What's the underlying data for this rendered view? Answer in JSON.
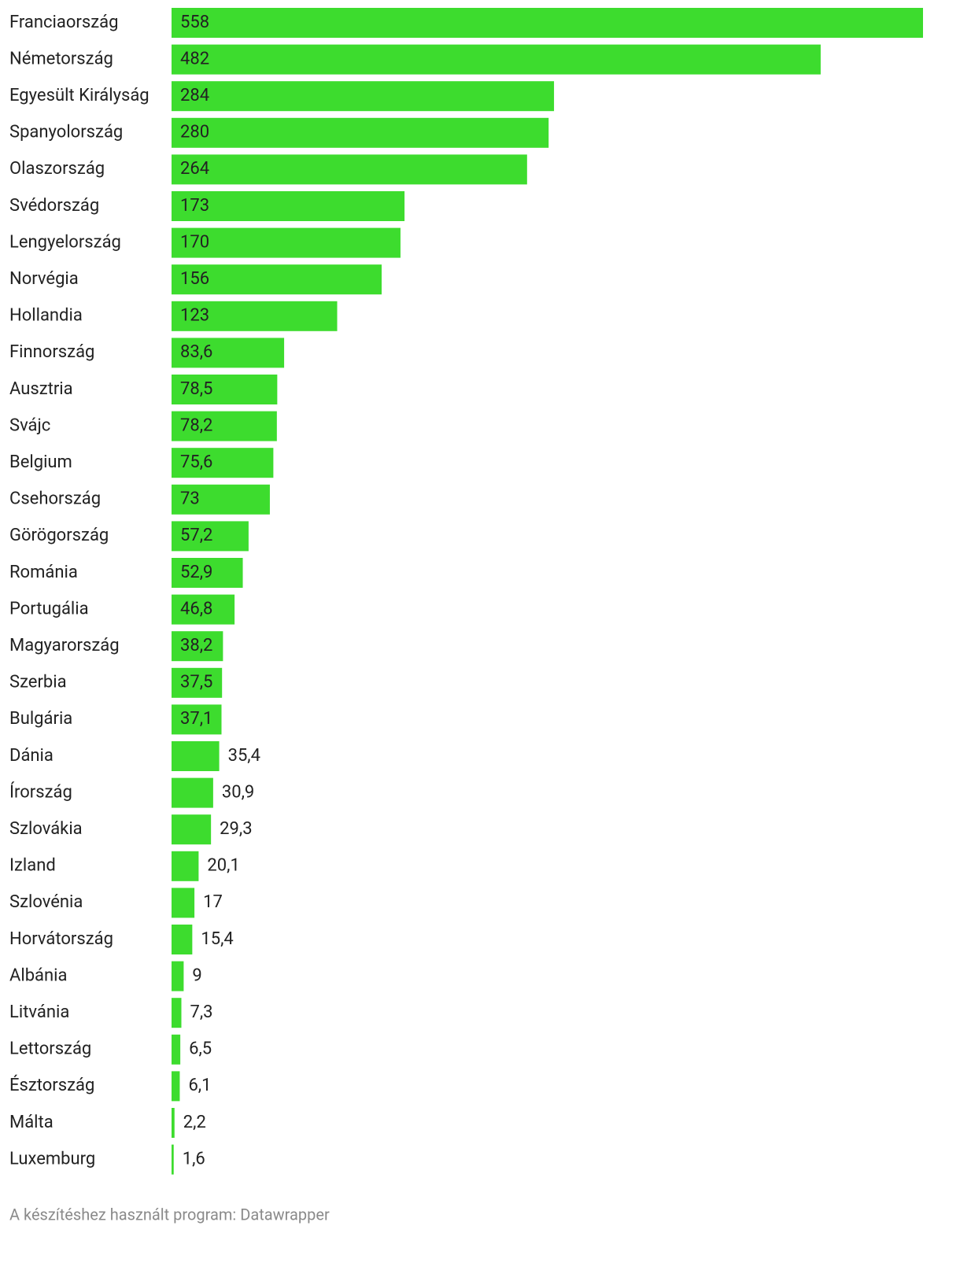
{
  "chart_data": {
    "type": "bar",
    "orientation": "horizontal",
    "color": "#3ddc2e",
    "categories": [
      "Franciaország",
      "Németország",
      "Egyesült Királyság",
      "Spanyolország",
      "Olaszország",
      "Svédország",
      "Lengyelország",
      "Norvégia",
      "Hollandia",
      "Finnország",
      "Ausztria",
      "Svájc",
      "Belgium",
      "Csehország",
      "Görögország",
      "Románia",
      "Portugália",
      "Magyarország",
      "Szerbia",
      "Bulgária",
      "Dánia",
      "Írország",
      "Szlovákia",
      "Izland",
      "Szlovénia",
      "Horvátország",
      "Albánia",
      "Litvánia",
      "Lettország",
      "Észtország",
      "Málta",
      "Luxemburg"
    ],
    "values": [
      558,
      482,
      284,
      280,
      264,
      173,
      170,
      156,
      123,
      83.6,
      78.5,
      78.2,
      75.6,
      73,
      57.2,
      52.9,
      46.8,
      38.2,
      37.5,
      37.1,
      35.4,
      30.9,
      29.3,
      20.1,
      17,
      15.4,
      9,
      7.3,
      6.5,
      6.1,
      2.2,
      1.6
    ],
    "value_labels": [
      "558",
      "482",
      "284",
      "280",
      "264",
      "173",
      "170",
      "156",
      "123",
      "83,6",
      "78,5",
      "78,2",
      "75,6",
      "73",
      "57,2",
      "52,9",
      "46,8",
      "38,2",
      "37,5",
      "37,1",
      "35,4",
      "30,9",
      "29,3",
      "20,1",
      "17",
      "15,4",
      "9",
      "7,3",
      "6,5",
      "6,1",
      "2,2",
      "1,6"
    ],
    "footer": "A készítéshez használt program: Datawrapper"
  }
}
